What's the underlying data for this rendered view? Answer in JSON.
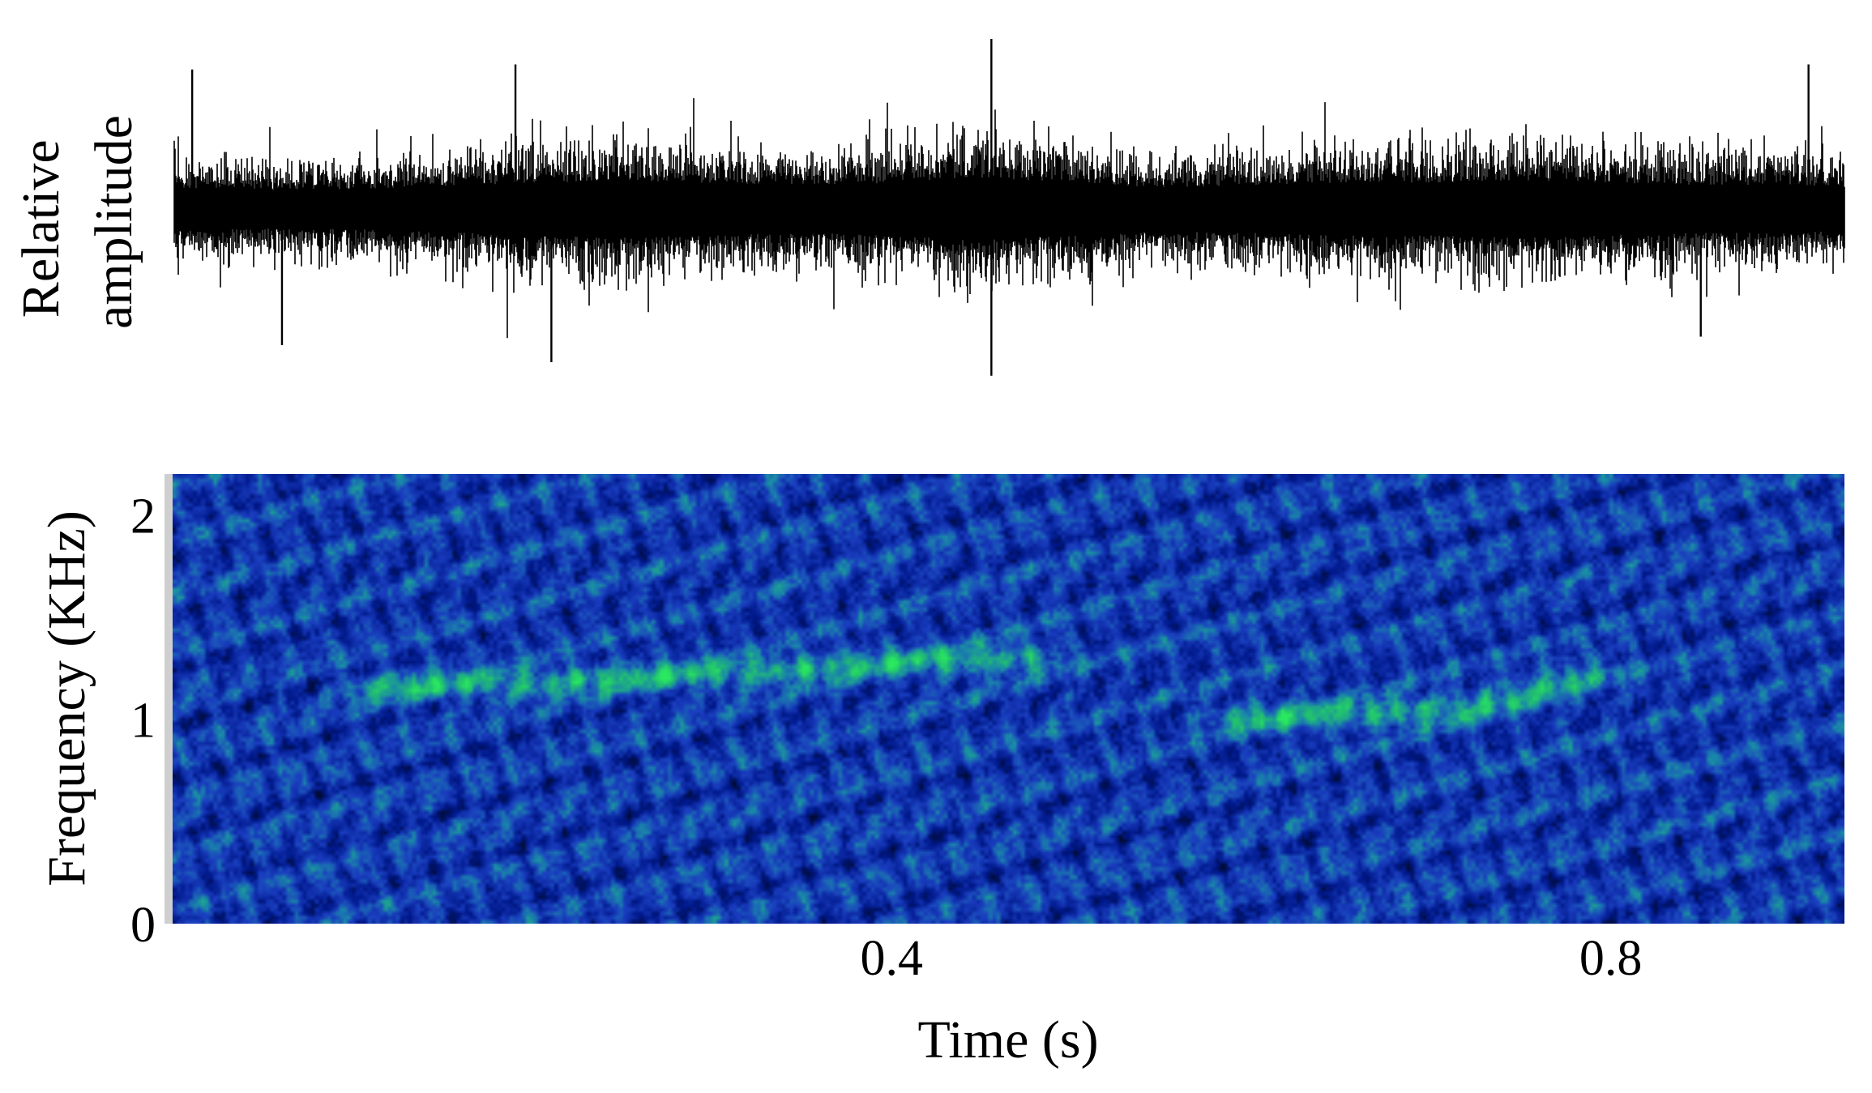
{
  "chart_data": [
    {
      "type": "line",
      "panel": "waveform",
      "title": "",
      "xlabel": "",
      "ylabel_lines": [
        "Relative",
        "amplitude"
      ],
      "x_range": [
        0,
        0.93
      ],
      "y_range": [
        -1,
        1
      ],
      "axes_visible": false,
      "grid": false,
      "series": [
        {
          "color": "#000000",
          "envelope": {
            "t": [
              0.0,
              0.05,
              0.1,
              0.15,
              0.2,
              0.25,
              0.3,
              0.35,
              0.4,
              0.45,
              0.5,
              0.55,
              0.6,
              0.65,
              0.7,
              0.75,
              0.8,
              0.85,
              0.9,
              0.93
            ],
            "amplitude": [
              0.45,
              0.4,
              0.42,
              0.48,
              0.55,
              0.6,
              0.55,
              0.5,
              0.55,
              0.65,
              0.55,
              0.45,
              0.5,
              0.55,
              0.55,
              0.6,
              0.55,
              0.5,
              0.5,
              0.45
            ]
          },
          "peaks": [
            {
              "t": 0.01,
              "value": 0.82
            },
            {
              "t": 0.06,
              "value": -0.8
            },
            {
              "t": 0.19,
              "value": 0.85
            },
            {
              "t": 0.21,
              "value": -0.9
            },
            {
              "t": 0.455,
              "value": 1.0
            },
            {
              "t": 0.455,
              "value": -0.98
            },
            {
              "t": 0.85,
              "value": -0.75
            },
            {
              "t": 0.91,
              "value": 0.85
            }
          ]
        }
      ]
    },
    {
      "type": "heatmap",
      "panel": "spectrogram",
      "title": "",
      "xlabel": "Time (s)",
      "ylabel": "Frequency (KHz)",
      "x_range": [
        0,
        0.93
      ],
      "y_range": [
        0,
        2.2
      ],
      "x_ticks": [
        0.4,
        0.8
      ],
      "x_tick_labels": [
        "0.4",
        "0.8"
      ],
      "y_ticks": [
        0,
        1,
        2
      ],
      "y_tick_labels": [
        "0",
        "1",
        "2"
      ],
      "colormap": [
        "#000a2a",
        "#00188a",
        "#1a3ec0",
        "#1a8aa8",
        "#22c070",
        "#2ae860"
      ],
      "grid": false,
      "harmonic_tracks": [
        {
          "t": [
            0.1,
            0.2,
            0.3,
            0.4,
            0.49
          ],
          "freq": [
            1.15,
            1.18,
            1.22,
            1.28,
            1.3
          ],
          "strength": 0.9
        },
        {
          "t": [
            0.58,
            0.65,
            0.72,
            0.76,
            0.8
          ],
          "freq": [
            1.0,
            1.02,
            1.05,
            1.15,
            1.25
          ],
          "strength": 0.9
        }
      ]
    }
  ]
}
